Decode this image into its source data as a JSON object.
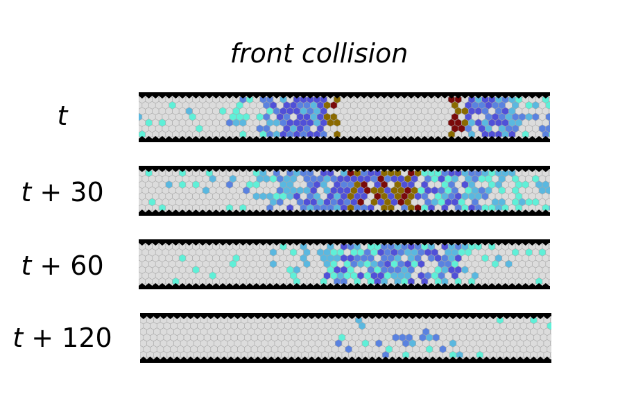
{
  "title": "front collision",
  "rows": [
    {
      "var": "t",
      "suffix": ""
    },
    {
      "var": "t",
      "suffix": " + 30"
    },
    {
      "var": "t",
      "suffix": " + 60"
    },
    {
      "var": "t",
      "suffix": " + 120"
    }
  ],
  "palette": {
    "background": "#dcdcdc",
    "grid": "#a8a8a8",
    "wall": "#000000",
    "cyan": "#5ff0d8",
    "light_blue": "#5ab8e0",
    "blue": "#5a82e0",
    "indigo": "#5050d8",
    "olive": "#8a6a00",
    "dark_red": "#7a0a0a"
  }
}
